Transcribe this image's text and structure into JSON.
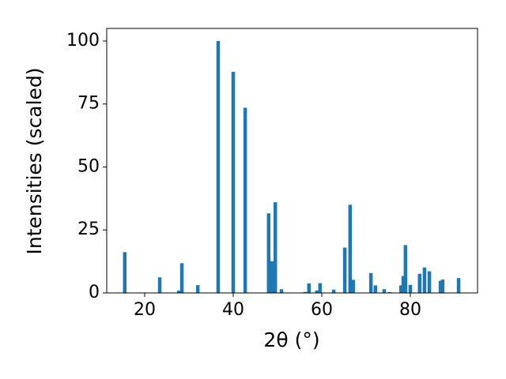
{
  "chart_data": {
    "type": "bar",
    "xlabel": "2θ (°)",
    "ylabel": "Intensities (scaled)",
    "x": [
      15.5,
      23.4,
      27.7,
      28.4,
      32.0,
      36.6,
      40.0,
      42.7,
      48.0,
      48.75,
      49.5,
      50.9,
      56.25,
      57.1,
      58.9,
      59.6,
      62.7,
      65.2,
      66.4,
      67.1,
      71.1,
      72.1,
      74.1,
      75.4,
      77.9,
      78.4,
      78.9,
      80.0,
      82.1,
      83.2,
      84.3,
      86.8,
      87.3,
      90.9
    ],
    "values": [
      16.2,
      6.2,
      0.9,
      11.8,
      3.1,
      100,
      87.8,
      73.5,
      31.6,
      12.6,
      36.0,
      1.5,
      0.4,
      3.8,
      1.0,
      3.9,
      1.3,
      18.0,
      35.0,
      5.2,
      7.9,
      3.0,
      1.5,
      0.3,
      3.0,
      6.7,
      19.0,
      3.2,
      7.6,
      10.1,
      8.6,
      4.8,
      5.3,
      5.9
    ],
    "color": "#1f77b4",
    "xlim": [
      11.43,
      95.18
    ],
    "xticks": [
      20,
      40,
      60,
      80
    ],
    "ylim": [
      0,
      105
    ],
    "yticks": [
      0,
      25,
      50,
      75,
      100
    ],
    "grid": false
  }
}
